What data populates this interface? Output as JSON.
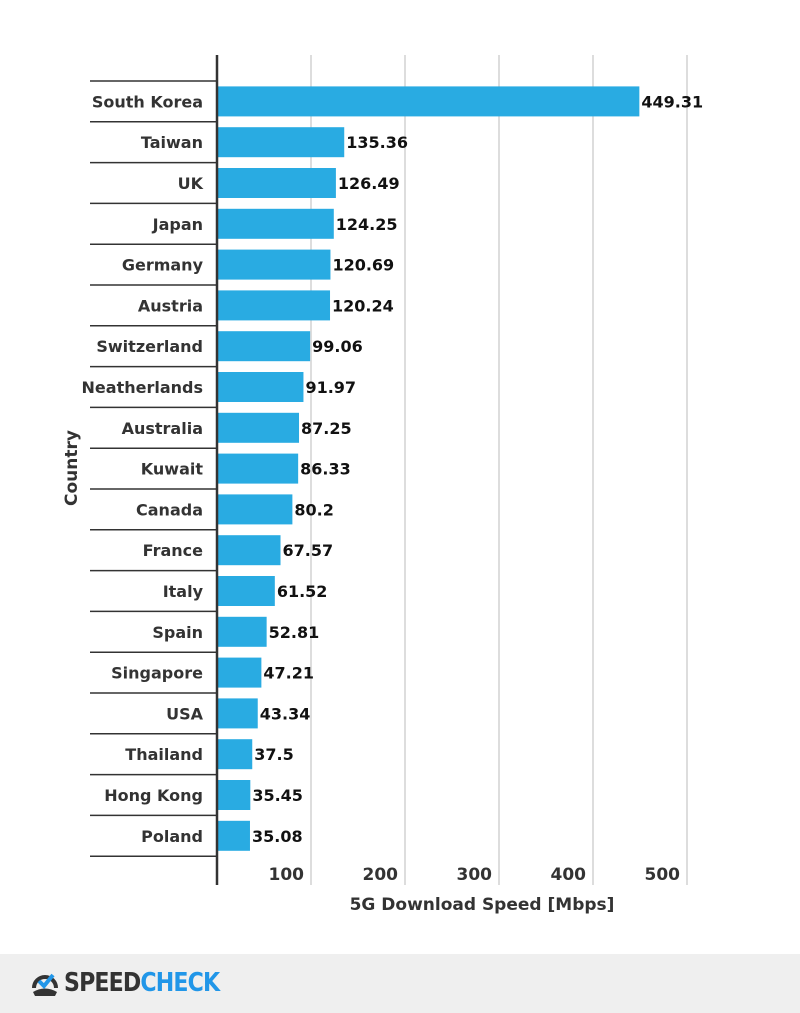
{
  "chart_data": {
    "type": "bar",
    "orientation": "horizontal",
    "categories": [
      "South Korea",
      "Taiwan",
      "UK",
      "Japan",
      "Germany",
      "Austria",
      "Switzerland",
      "Neatherlands",
      "Australia",
      "Kuwait",
      "Canada",
      "France",
      "Italy",
      "Spain",
      "Singapore",
      "USA",
      "Thailand",
      "Hong Kong",
      "Poland"
    ],
    "values": [
      449.31,
      135.36,
      126.49,
      124.25,
      120.69,
      120.24,
      99.06,
      91.97,
      87.25,
      86.33,
      80.2,
      67.57,
      61.52,
      52.81,
      47.21,
      43.34,
      37.5,
      35.45,
      35.08
    ],
    "value_labels": [
      "449.31",
      "135.36",
      "126.49",
      "124.25",
      "120.69",
      "120.24",
      "99.06",
      "91.97",
      "87.25",
      "86.33",
      "80.2",
      "67.57",
      "61.52",
      "52.81",
      "47.21",
      "43.34",
      "37.5",
      "35.45",
      "35.08"
    ],
    "xlabel": "5G Download Speed [Mbps]",
    "ylabel": "Country",
    "xlim": [
      0,
      500
    ],
    "xticks": [
      "100",
      "200",
      "300",
      "400",
      "500"
    ],
    "grid": true,
    "bar_color": "#29abe2"
  },
  "footer": {
    "logo_part1": "SPEED",
    "logo_part2": "CHECK"
  }
}
